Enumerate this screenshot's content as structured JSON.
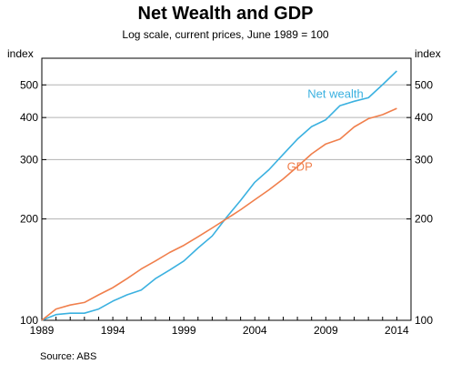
{
  "chart_data": {
    "type": "line",
    "title": "Net Wealth and GDP",
    "subtitle": "Log scale, current prices, June 1989 = 100",
    "ylabel_left": "index",
    "ylabel_right": "index",
    "y_scale": "log",
    "ylim": [
      100,
      600
    ],
    "xlim": [
      1989,
      2015
    ],
    "y_ticks": [
      100,
      200,
      300,
      400,
      500
    ],
    "y_tick_labels": [
      "100",
      "200",
      "300",
      "400",
      "500"
    ],
    "x_ticks": [
      1989,
      1994,
      1999,
      2004,
      2009,
      2014
    ],
    "x_tick_labels": [
      "1989",
      "1994",
      "1999",
      "2004",
      "2009",
      "2014"
    ],
    "grid": true,
    "series": [
      {
        "name": "Net wealth",
        "color": "#3bb1e0",
        "x": [
          1989,
          1990,
          1991,
          1992,
          1993,
          1994,
          1995,
          1996,
          1997,
          1998,
          1999,
          2000,
          2001,
          2002,
          2003,
          2004,
          2005,
          2006,
          2007,
          2008,
          2009,
          2010,
          2011,
          2012,
          2013,
          2014
        ],
        "values": [
          100,
          104,
          105,
          105,
          108,
          114,
          119,
          123,
          133,
          141,
          150,
          164,
          178,
          202,
          227,
          257,
          280,
          311,
          345,
          376,
          394,
          434,
          447,
          458,
          501,
          550
        ]
      },
      {
        "name": "GDP",
        "color": "#f07f4c",
        "x": [
          1989,
          1990,
          1991,
          1992,
          1993,
          1994,
          1995,
          1996,
          1997,
          1998,
          1999,
          2000,
          2001,
          2002,
          2003,
          2004,
          2005,
          2006,
          2007,
          2008,
          2009,
          2010,
          2011,
          2012,
          2013,
          2014
        ],
        "values": [
          100,
          108,
          111,
          113,
          119,
          125,
          133,
          142,
          150,
          159,
          167,
          177,
          188,
          200,
          213,
          228,
          244,
          263,
          286,
          312,
          334,
          345,
          375,
          397,
          408,
          426
        ]
      }
    ],
    "source": "Source:   ABS"
  }
}
